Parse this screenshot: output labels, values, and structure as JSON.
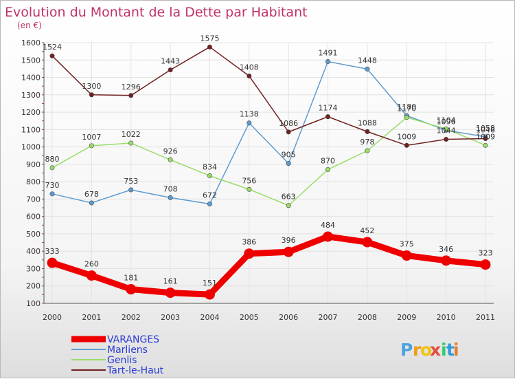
{
  "chart_data": {
    "type": "line",
    "title": "Evolution du Montant de la Dette par Habitant",
    "subtitle": "(en €)",
    "x": [
      "2000",
      "2001",
      "2002",
      "2003",
      "2004",
      "2005",
      "2006",
      "2007",
      "2008",
      "2009",
      "2010",
      "2011"
    ],
    "ylim": [
      100,
      1600
    ],
    "yticks": [
      100,
      200,
      300,
      400,
      500,
      600,
      700,
      800,
      900,
      1000,
      1100,
      1200,
      1300,
      1400,
      1500,
      1600
    ],
    "grid": true,
    "legend": "bottom-left",
    "series": [
      {
        "name": "VARANGES",
        "color": "#ee0000",
        "emphasis": true,
        "values": [
          333,
          260,
          181,
          161,
          151,
          386,
          396,
          484,
          452,
          375,
          346,
          323
        ],
        "labels": [
          "333",
          "260",
          "181",
          "161",
          "151",
          "386",
          "396",
          "484",
          "452",
          "375",
          "346",
          "323"
        ]
      },
      {
        "name": "Marliens",
        "color": "#5e9bd0",
        "values": [
          730,
          678,
          753,
          708,
          672,
          1138,
          905,
          1491,
          1448,
          1180,
          1096,
          1058
        ],
        "labels": [
          "730",
          "678",
          "753",
          "708",
          "672",
          "1138",
          "905",
          "1491",
          "1448",
          "1180",
          "1096",
          "1058"
        ]
      },
      {
        "name": "Genlis",
        "color": "#99dd66",
        "values": [
          880,
          1007,
          1022,
          926,
          834,
          756,
          663,
          870,
          978,
          1170,
          1104,
          1009
        ],
        "labels": [
          "880",
          "1007",
          "1022",
          "926",
          "834",
          "756",
          "663",
          "870",
          "978",
          "1170",
          "1104",
          "1009"
        ]
      },
      {
        "name": "Tart-le-Haut",
        "color": "#702020",
        "values": [
          1524,
          1300,
          1296,
          1443,
          1575,
          1408,
          1086,
          1174,
          1088,
          1009,
          1044,
          1048
        ],
        "labels": [
          "1524",
          "1300",
          "1296",
          "1443",
          "1575",
          "1408",
          "1086",
          "1174",
          "1088",
          "1009",
          "1044",
          "1048"
        ]
      }
    ]
  },
  "brand": {
    "letters": [
      "P",
      "r",
      "o",
      "x",
      "i",
      "t",
      "i"
    ],
    "colors": [
      "#4aa3df",
      "#f39c12",
      "#f1c40f",
      "#e74c3c",
      "#2ecc71",
      "#3498db",
      "#e67e22"
    ]
  }
}
